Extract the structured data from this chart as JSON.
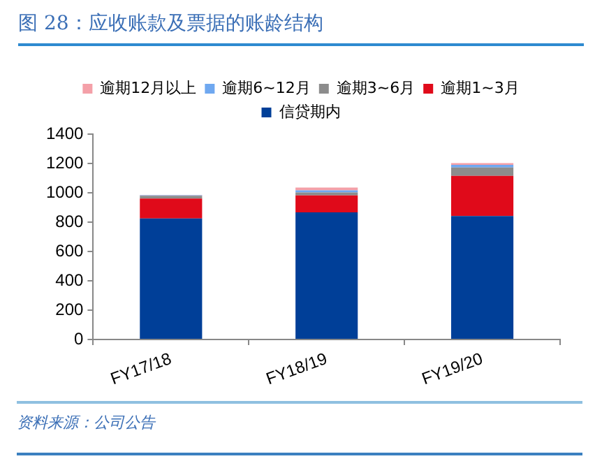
{
  "chart_data": {
    "type": "bar",
    "title": "图 28：应收账款及票据的账龄结构",
    "annotations": [
      "资料来源：公司公告"
    ],
    "categories": [
      "FY17/18",
      "FY18/19",
      "FY19/20"
    ],
    "stacked": true,
    "legend": "top",
    "grid": false,
    "ylim": [
      0,
      1400
    ],
    "yticks": [
      0,
      200,
      400,
      600,
      800,
      1000,
      1200,
      1400
    ],
    "series": [
      {
        "name": "信贷期内",
        "color": "#003f98",
        "values": [
          825,
          867,
          841
        ]
      },
      {
        "name": "逾期1~3月",
        "color": "#e00a1a",
        "values": [
          135,
          115,
          274
        ]
      },
      {
        "name": "逾期3~6月",
        "color": "#8c8c8c",
        "values": [
          20,
          20,
          58
        ]
      },
      {
        "name": "逾期6~12月",
        "color": "#6fa8f0",
        "values": [
          3,
          14,
          17
        ]
      },
      {
        "name": "逾期12月以上",
        "color": "#f4a0a8",
        "values": [
          2,
          20,
          12
        ]
      }
    ]
  }
}
